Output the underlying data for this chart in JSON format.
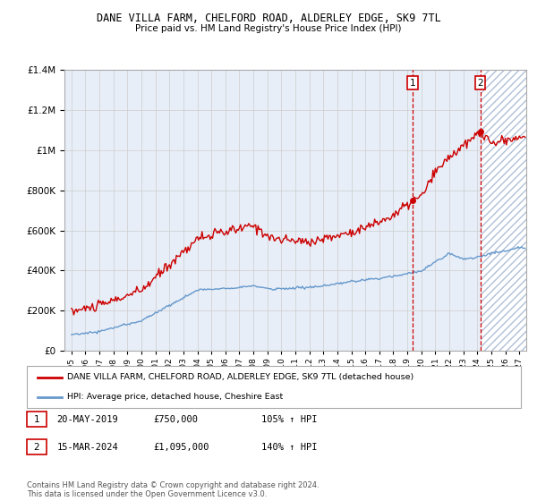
{
  "title": "DANE VILLA FARM, CHELFORD ROAD, ALDERLEY EDGE, SK9 7TL",
  "subtitle": "Price paid vs. HM Land Registry's House Price Index (HPI)",
  "legend_line1": "DANE VILLA FARM, CHELFORD ROAD, ALDERLEY EDGE, SK9 7TL (detached house)",
  "legend_line2": "HPI: Average price, detached house, Cheshire East",
  "annotation1_label": "1",
  "annotation1_date": "20-MAY-2019",
  "annotation1_price": "£750,000",
  "annotation1_hpi": "105% ↑ HPI",
  "annotation1_year": 2019.38,
  "annotation1_value": 750000,
  "annotation2_label": "2",
  "annotation2_date": "15-MAR-2024",
  "annotation2_price": "£1,095,000",
  "annotation2_hpi": "140% ↑ HPI",
  "annotation2_year": 2024.21,
  "annotation2_value": 1095000,
  "hpi_color": "#6699cc",
  "price_color": "#cc0000",
  "annotation_color": "#cc0000",
  "background_color": "#ffffff",
  "plot_bg_color": "#e8eef8",
  "grid_color": "#cccccc",
  "hatch_color": "#b0c0d8",
  "ylim": [
    0,
    1400000
  ],
  "xlim_start": 1994.5,
  "xlim_end": 2027.5,
  "yticks": [
    0,
    200000,
    400000,
    600000,
    800000,
    1000000,
    1200000,
    1400000
  ],
  "footer": "Contains HM Land Registry data © Crown copyright and database right 2024.\nThis data is licensed under the Open Government Licence v3.0."
}
